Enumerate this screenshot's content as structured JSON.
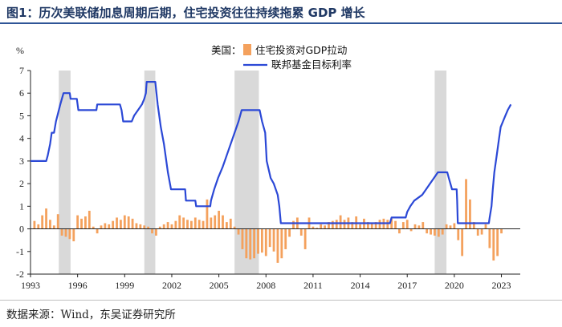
{
  "header": {
    "title": "图1：历次美联储加息周期后期，住宅投资往往持续拖累 GDP 增长"
  },
  "footer": {
    "source": "数据来源：Wind，东吴证券研究所"
  },
  "chart_data": {
    "type": "bar+line",
    "title": "",
    "ylabel": "%",
    "xlabel": "",
    "ylim": [
      -2,
      7
    ],
    "xlim": [
      1993,
      2024.2
    ],
    "y_ticks": [
      -2,
      -1,
      0,
      1,
      2,
      3,
      4,
      5,
      6,
      7
    ],
    "x_ticks": [
      1993,
      1996,
      1999,
      2002,
      2005,
      2008,
      2011,
      2014,
      2017,
      2020,
      2023
    ],
    "grid": false,
    "legend": {
      "placement": "top-center",
      "prefix": "美国：",
      "entries": [
        "住宅投资对GDP拉动",
        "联邦基金目标利率"
      ]
    },
    "colors": {
      "bar": "#f4a15d",
      "line": "#2b48d6",
      "shade": "#d9d9d9"
    },
    "shaded_periods": [
      {
        "start": 1994.8,
        "end": 1995.55
      },
      {
        "start": 2000.25,
        "end": 2000.95
      },
      {
        "start": 2006.0,
        "end": 2007.55
      },
      {
        "start": 2018.75,
        "end": 2019.5
      }
    ],
    "series": [
      {
        "name": "住宅投资对GDP拉动",
        "kind": "bar",
        "points": [
          [
            1993.25,
            0.35
          ],
          [
            1993.5,
            0.2
          ],
          [
            1993.75,
            0.6
          ],
          [
            1994.0,
            0.9
          ],
          [
            1994.25,
            0.4
          ],
          [
            1994.5,
            0.15
          ],
          [
            1994.75,
            0.65
          ],
          [
            1995.0,
            -0.3
          ],
          [
            1995.25,
            -0.35
          ],
          [
            1995.5,
            -0.45
          ],
          [
            1995.75,
            -0.55
          ],
          [
            1996.0,
            0.6
          ],
          [
            1996.25,
            0.45
          ],
          [
            1996.5,
            0.55
          ],
          [
            1996.75,
            0.8
          ],
          [
            1997.0,
            0.1
          ],
          [
            1997.25,
            -0.2
          ],
          [
            1997.5,
            0.15
          ],
          [
            1997.75,
            0.25
          ],
          [
            1998.0,
            0.2
          ],
          [
            1998.25,
            0.35
          ],
          [
            1998.5,
            0.5
          ],
          [
            1998.75,
            0.4
          ],
          [
            1999.0,
            0.6
          ],
          [
            1999.25,
            0.55
          ],
          [
            1999.5,
            0.45
          ],
          [
            1999.75,
            0.25
          ],
          [
            2000.0,
            0.2
          ],
          [
            2000.25,
            0.15
          ],
          [
            2000.5,
            0.1
          ],
          [
            2000.75,
            -0.2
          ],
          [
            2001.0,
            -0.3
          ],
          [
            2001.25,
            0.1
          ],
          [
            2001.5,
            0.2
          ],
          [
            2001.75,
            0.3
          ],
          [
            2002.0,
            0.2
          ],
          [
            2002.25,
            0.35
          ],
          [
            2002.5,
            0.6
          ],
          [
            2002.75,
            0.5
          ],
          [
            2003.0,
            0.4
          ],
          [
            2003.25,
            0.35
          ],
          [
            2003.5,
            0.5
          ],
          [
            2003.75,
            0.4
          ],
          [
            2004.0,
            0.35
          ],
          [
            2004.25,
            1.3
          ],
          [
            2004.5,
            0.5
          ],
          [
            2004.75,
            0.6
          ],
          [
            2005.0,
            0.8
          ],
          [
            2005.25,
            0.6
          ],
          [
            2005.5,
            0.3
          ],
          [
            2005.75,
            0.45
          ],
          [
            2006.0,
            0.1
          ],
          [
            2006.25,
            -0.25
          ],
          [
            2006.5,
            -0.9
          ],
          [
            2006.75,
            -1.3
          ],
          [
            2007.0,
            -1.35
          ],
          [
            2007.25,
            -1.3
          ],
          [
            2007.5,
            -1.1
          ],
          [
            2007.75,
            -1.05
          ],
          [
            2008.0,
            -1.2
          ],
          [
            2008.25,
            -0.8
          ],
          [
            2008.5,
            -1.0
          ],
          [
            2008.75,
            -1.5
          ],
          [
            2009.0,
            -1.3
          ],
          [
            2009.25,
            -0.9
          ],
          [
            2009.5,
            -0.35
          ],
          [
            2009.75,
            0.35
          ],
          [
            2010.0,
            0.5
          ],
          [
            2010.25,
            -0.3
          ],
          [
            2010.5,
            -0.9
          ],
          [
            2010.75,
            0.5
          ],
          [
            2011.0,
            0.1
          ],
          [
            2011.25,
            0.05
          ],
          [
            2011.5,
            0.2
          ],
          [
            2011.75,
            0.15
          ],
          [
            2012.0,
            0.3
          ],
          [
            2012.25,
            0.35
          ],
          [
            2012.5,
            0.4
          ],
          [
            2012.75,
            0.6
          ],
          [
            2013.0,
            0.4
          ],
          [
            2013.25,
            0.5
          ],
          [
            2013.5,
            0.3
          ],
          [
            2013.75,
            0.55
          ],
          [
            2014.0,
            0.2
          ],
          [
            2014.25,
            0.45
          ],
          [
            2014.5,
            0.3
          ],
          [
            2014.75,
            0.25
          ],
          [
            2015.0,
            0.3
          ],
          [
            2015.25,
            0.4
          ],
          [
            2015.5,
            0.45
          ],
          [
            2015.75,
            0.4
          ],
          [
            2016.0,
            0.45
          ],
          [
            2016.25,
            0.35
          ],
          [
            2016.5,
            -0.2
          ],
          [
            2016.75,
            0.3
          ],
          [
            2017.0,
            0.4
          ],
          [
            2017.25,
            -0.1
          ],
          [
            2017.5,
            0.2
          ],
          [
            2017.75,
            0.15
          ],
          [
            2018.0,
            0.3
          ],
          [
            2018.25,
            -0.2
          ],
          [
            2018.5,
            -0.25
          ],
          [
            2018.75,
            -0.3
          ],
          [
            2019.0,
            -0.35
          ],
          [
            2019.25,
            -0.25
          ],
          [
            2019.5,
            0.2
          ],
          [
            2019.75,
            0.15
          ],
          [
            2020.0,
            0.25
          ],
          [
            2020.25,
            -0.5
          ],
          [
            2020.5,
            -1.2
          ],
          [
            2020.75,
            2.2
          ],
          [
            2021.0,
            1.3
          ],
          [
            2021.25,
            0.3
          ],
          [
            2021.5,
            -0.3
          ],
          [
            2021.75,
            -0.25
          ],
          [
            2022.0,
            0.2
          ],
          [
            2022.25,
            -0.85
          ],
          [
            2022.5,
            -1.4
          ],
          [
            2022.75,
            -1.2
          ],
          [
            2023.0,
            -0.2
          ]
        ]
      },
      {
        "name": "联邦基金目标利率",
        "kind": "line",
        "points": [
          [
            1993.0,
            3.0
          ],
          [
            1994.0,
            3.0
          ],
          [
            1994.1,
            3.25
          ],
          [
            1994.25,
            3.75
          ],
          [
            1994.35,
            4.25
          ],
          [
            1994.5,
            4.25
          ],
          [
            1994.62,
            4.75
          ],
          [
            1994.9,
            5.5
          ],
          [
            1995.1,
            6.0
          ],
          [
            1995.5,
            6.0
          ],
          [
            1995.55,
            5.75
          ],
          [
            1995.95,
            5.75
          ],
          [
            1996.05,
            5.25
          ],
          [
            1997.2,
            5.25
          ],
          [
            1997.25,
            5.5
          ],
          [
            1998.7,
            5.5
          ],
          [
            1998.8,
            5.25
          ],
          [
            1998.9,
            4.75
          ],
          [
            1999.45,
            4.75
          ],
          [
            1999.6,
            5.0
          ],
          [
            1999.85,
            5.25
          ],
          [
            2000.1,
            5.5
          ],
          [
            2000.25,
            5.75
          ],
          [
            2000.35,
            6.0
          ],
          [
            2000.4,
            6.5
          ],
          [
            2000.95,
            6.5
          ],
          [
            2001.1,
            5.5
          ],
          [
            2001.3,
            4.5
          ],
          [
            2001.5,
            3.75
          ],
          [
            2001.75,
            2.5
          ],
          [
            2001.95,
            1.75
          ],
          [
            2002.85,
            1.75
          ],
          [
            2002.9,
            1.25
          ],
          [
            2003.5,
            1.25
          ],
          [
            2003.55,
            1.0
          ],
          [
            2004.45,
            1.0
          ],
          [
            2004.5,
            1.25
          ],
          [
            2004.7,
            1.75
          ],
          [
            2004.95,
            2.25
          ],
          [
            2005.25,
            2.75
          ],
          [
            2005.5,
            3.25
          ],
          [
            2005.75,
            3.75
          ],
          [
            2006.0,
            4.25
          ],
          [
            2006.25,
            4.75
          ],
          [
            2006.45,
            5.25
          ],
          [
            2007.6,
            5.25
          ],
          [
            2007.75,
            4.75
          ],
          [
            2007.95,
            4.25
          ],
          [
            2008.05,
            3.0
          ],
          [
            2008.3,
            2.25
          ],
          [
            2008.5,
            2.0
          ],
          [
            2008.75,
            1.5
          ],
          [
            2008.85,
            1.0
          ],
          [
            2008.95,
            0.25
          ],
          [
            2015.9,
            0.25
          ],
          [
            2016.0,
            0.5
          ],
          [
            2016.9,
            0.5
          ],
          [
            2017.0,
            0.75
          ],
          [
            2017.2,
            1.0
          ],
          [
            2017.45,
            1.25
          ],
          [
            2017.95,
            1.5
          ],
          [
            2018.2,
            1.75
          ],
          [
            2018.45,
            2.0
          ],
          [
            2018.7,
            2.25
          ],
          [
            2018.95,
            2.5
          ],
          [
            2019.55,
            2.5
          ],
          [
            2019.65,
            2.25
          ],
          [
            2019.75,
            2.0
          ],
          [
            2019.85,
            1.75
          ],
          [
            2020.15,
            1.75
          ],
          [
            2020.18,
            1.25
          ],
          [
            2020.22,
            0.25
          ],
          [
            2022.2,
            0.25
          ],
          [
            2022.25,
            0.5
          ],
          [
            2022.37,
            1.0
          ],
          [
            2022.45,
            1.75
          ],
          [
            2022.55,
            2.5
          ],
          [
            2022.7,
            3.25
          ],
          [
            2022.85,
            4.0
          ],
          [
            2022.95,
            4.5
          ],
          [
            2023.1,
            4.75
          ],
          [
            2023.25,
            5.0
          ],
          [
            2023.4,
            5.25
          ],
          [
            2023.6,
            5.5
          ]
        ]
      }
    ]
  }
}
